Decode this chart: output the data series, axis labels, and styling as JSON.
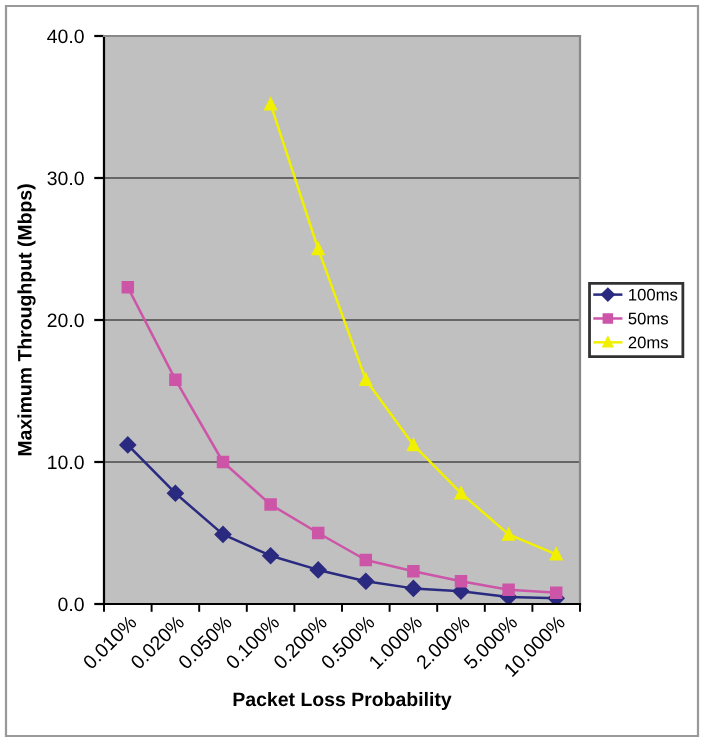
{
  "chart_data": {
    "type": "line",
    "categories": [
      "0.010%",
      "0.020%",
      "0.050%",
      "0.100%",
      "0.200%",
      "0.500%",
      "1.000%",
      "2.000%",
      "5.000%",
      "10.000%"
    ],
    "series": [
      {
        "name": "100ms",
        "color": "#2a2a80",
        "marker": "diamond",
        "values": [
          11.2,
          7.8,
          4.9,
          3.4,
          2.4,
          1.6,
          1.1,
          0.9,
          0.5,
          0.4
        ]
      },
      {
        "name": "50ms",
        "color": "#cc55a8",
        "marker": "square",
        "values": [
          22.3,
          15.8,
          10.0,
          7.0,
          5.0,
          3.1,
          2.3,
          1.6,
          1.0,
          0.8
        ]
      },
      {
        "name": "20ms",
        "color": "#f0f000",
        "marker": "triangle",
        "values": [
          null,
          null,
          null,
          35.2,
          25.0,
          15.8,
          11.2,
          7.8,
          4.9,
          3.5
        ]
      }
    ],
    "xlabel": "Packet Loss Probability",
    "ylabel": "Maximum Throughput (Mbps)",
    "ylim": [
      0,
      40
    ],
    "yticks": [
      {
        "value": 0,
        "label": "0.0"
      },
      {
        "value": 10,
        "label": "10.0"
      },
      {
        "value": 20,
        "label": "20.0"
      },
      {
        "value": 30,
        "label": "30.0"
      },
      {
        "value": 40,
        "label": "40.0"
      }
    ],
    "grid": "y",
    "legend": "right"
  }
}
